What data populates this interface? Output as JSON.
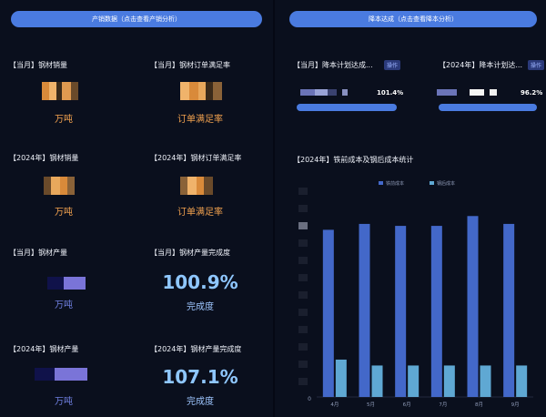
{
  "left_panel": {
    "header_button": "产销数据（点击查看产销分析）",
    "kpis": [
      {
        "id": "monthly-steel-sales",
        "title": "【当月】钢材销量",
        "value": "",
        "unit": "万吨",
        "unit_color": "orange"
      },
      {
        "id": "monthly-order-fill-rate",
        "title": "【当月】钢材订单满足率",
        "value": "",
        "unit": "订单满足率",
        "unit_color": "orange"
      },
      {
        "id": "year-steel-sales",
        "title": "【2024年】钢材销量",
        "value": "",
        "unit": "万吨",
        "unit_color": "orange"
      },
      {
        "id": "year-order-fill-rate",
        "title": "【2024年】钢材订单满足率",
        "value": "",
        "unit": "订单满足率",
        "unit_color": "orange"
      },
      {
        "id": "monthly-steel-output",
        "title": "【当月】钢材产量",
        "value": "",
        "unit": "万吨",
        "unit_color": "blue"
      },
      {
        "id": "monthly-output-completion",
        "title": "【当月】钢材产量完成度",
        "value": "100.9%",
        "unit": "完成度",
        "unit_color": "lightblue"
      },
      {
        "id": "year-steel-output",
        "title": "【2024年】钢材产量",
        "value": "",
        "unit": "万吨",
        "unit_color": "blue"
      },
      {
        "id": "year-output-completion",
        "title": "【2024年】钢材产量完成度",
        "value": "107.1%",
        "unit": "完成度",
        "unit_color": "lightblue"
      }
    ]
  },
  "right_panel": {
    "header_button": "降本达成（点击查看降本分析）",
    "plans": [
      {
        "title": "【当月】降本计划达成...",
        "tag": "操作",
        "percent": "101.4%",
        "progress": 1.0
      },
      {
        "title": "【2024年】降本计划达...",
        "tag": "操作",
        "percent": "96.2%",
        "progress": 0.962
      }
    ],
    "chart_title": "【2024年】铁前成本及钢后成本统计"
  },
  "colors": {
    "accent": "#4a7be0",
    "series_front": "#4368c9",
    "series_back": "#5fa8d3",
    "orange": "#f2a24f"
  },
  "chart_data": {
    "type": "bar",
    "title": "【2024年】铁前成本及钢后成本统计",
    "categories": [
      "4月",
      "5月",
      "6月",
      "7月",
      "8月",
      "9月"
    ],
    "series": [
      {
        "name": "铁前成本",
        "values": [
          0.85,
          0.88,
          0.87,
          0.87,
          0.92,
          0.88
        ]
      },
      {
        "name": "钢后成本",
        "values": [
          0.19,
          0.16,
          0.16,
          0.16,
          0.16,
          0.16
        ]
      }
    ],
    "ylim": [
      0,
      1
    ],
    "y_tick_labels": [
      "0"
    ],
    "legend_position": "top-center",
    "grid": false
  }
}
